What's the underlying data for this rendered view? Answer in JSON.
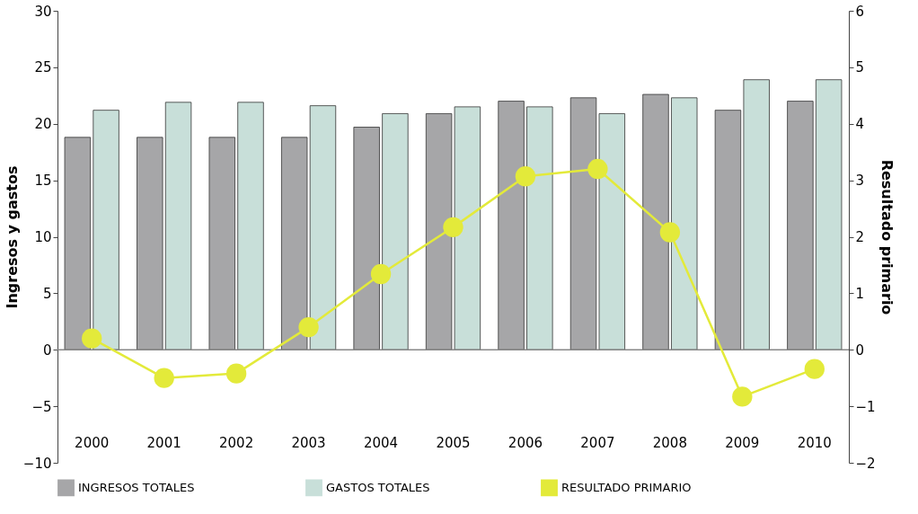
{
  "chart_data": {
    "type": "bar",
    "categories": [
      "2000",
      "2001",
      "2002",
      "2003",
      "2004",
      "2005",
      "2006",
      "2007",
      "2008",
      "2009",
      "2010"
    ],
    "ylabel": "Ingresos y gastos",
    "y2label": "Resultado primario",
    "ylim": [
      -10,
      30
    ],
    "yticks": [
      -10,
      -5,
      0,
      5,
      10,
      15,
      20,
      25,
      30
    ],
    "y2lim": [
      -2,
      6
    ],
    "y2ticks": [
      -2,
      -1,
      0,
      1,
      2,
      3,
      4,
      5,
      6
    ],
    "legend": "bottom",
    "ref_lines": [
      {
        "axis": "y",
        "value": 0,
        "color": "#888888"
      }
    ],
    "marker": "circle",
    "line_style": "solid",
    "series": [
      {
        "name": "INGRESOS TOTALES",
        "color": "#a6a6a8",
        "values": [
          18.8,
          18.8,
          18.8,
          18.8,
          19.7,
          20.9,
          22.0,
          22.3,
          22.6,
          21.2,
          22.0
        ]
      },
      {
        "name": "GASTOS TOTALES",
        "color": "#c8dfd9",
        "values": [
          21.2,
          21.9,
          21.9,
          21.6,
          20.9,
          21.5,
          21.5,
          20.9,
          22.3,
          23.9,
          23.9
        ]
      },
      {
        "name": "RESULTADO PRIMARIO",
        "color": "#e3ea3a",
        "type": "line",
        "axis": "y2",
        "values": [
          0.2,
          -0.5,
          -0.42,
          0.4,
          1.34,
          2.17,
          3.07,
          3.2,
          2.08,
          -0.83,
          -0.34
        ]
      }
    ]
  }
}
